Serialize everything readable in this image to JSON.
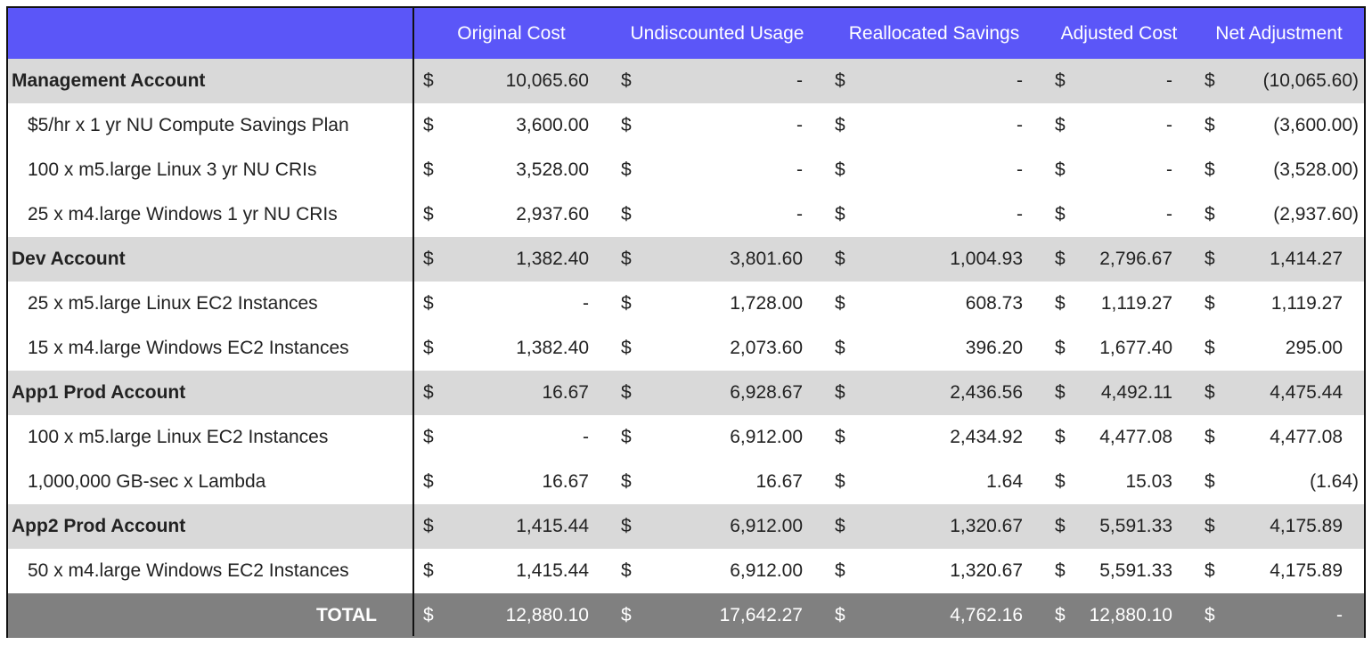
{
  "table": {
    "currency": "$",
    "columns": [
      "Original Cost",
      "Undiscounted Usage",
      "Reallocated Savings",
      "Adjusted Cost",
      "Net Adjustment"
    ],
    "rows": [
      {
        "kind": "group",
        "label": "Management Account",
        "cells": [
          "10,065.60",
          "-",
          "-",
          "-",
          "(10,065.60)"
        ]
      },
      {
        "kind": "item",
        "label": "$5/hr x 1 yr NU Compute Savings Plan",
        "cells": [
          "3,600.00",
          "-",
          "-",
          "-",
          "(3,600.00)"
        ]
      },
      {
        "kind": "item",
        "label": "100 x m5.large Linux 3 yr NU CRIs",
        "cells": [
          "3,528.00",
          "-",
          "-",
          "-",
          "(3,528.00)"
        ]
      },
      {
        "kind": "item",
        "label": "25 x m4.large Windows 1 yr NU CRIs",
        "cells": [
          "2,937.60",
          "-",
          "-",
          "-",
          "(2,937.60)"
        ]
      },
      {
        "kind": "group",
        "label": "Dev Account",
        "cells": [
          "1,382.40",
          "3,801.60",
          "1,004.93",
          "2,796.67",
          "1,414.27"
        ]
      },
      {
        "kind": "item",
        "label": "25 x m5.large Linux EC2 Instances",
        "cells": [
          "-",
          "1,728.00",
          "608.73",
          "1,119.27",
          "1,119.27"
        ]
      },
      {
        "kind": "item",
        "label": "15 x m4.large Windows EC2 Instances",
        "cells": [
          "1,382.40",
          "2,073.60",
          "396.20",
          "1,677.40",
          "295.00"
        ]
      },
      {
        "kind": "group",
        "label": "App1 Prod Account",
        "cells": [
          "16.67",
          "6,928.67",
          "2,436.56",
          "4,492.11",
          "4,475.44"
        ]
      },
      {
        "kind": "item",
        "label": "100 x m5.large Linux EC2 Instances",
        "cells": [
          "-",
          "6,912.00",
          "2,434.92",
          "4,477.08",
          "4,477.08"
        ]
      },
      {
        "kind": "item",
        "label": "1,000,000 GB-sec x Lambda",
        "cells": [
          "16.67",
          "16.67",
          "1.64",
          "15.03",
          "(1.64)"
        ]
      },
      {
        "kind": "group",
        "label": "App2 Prod Account",
        "cells": [
          "1,415.44",
          "6,912.00",
          "1,320.67",
          "5,591.33",
          "4,175.89"
        ]
      },
      {
        "kind": "item",
        "label": "50 x m4.large Windows EC2 Instances",
        "cells": [
          "1,415.44",
          "6,912.00",
          "1,320.67",
          "5,591.33",
          "4,175.89"
        ]
      },
      {
        "kind": "total",
        "label": "TOTAL",
        "cells": [
          "12,880.10",
          "17,642.27",
          "4,762.16",
          "12,880.10",
          "-"
        ]
      }
    ]
  }
}
